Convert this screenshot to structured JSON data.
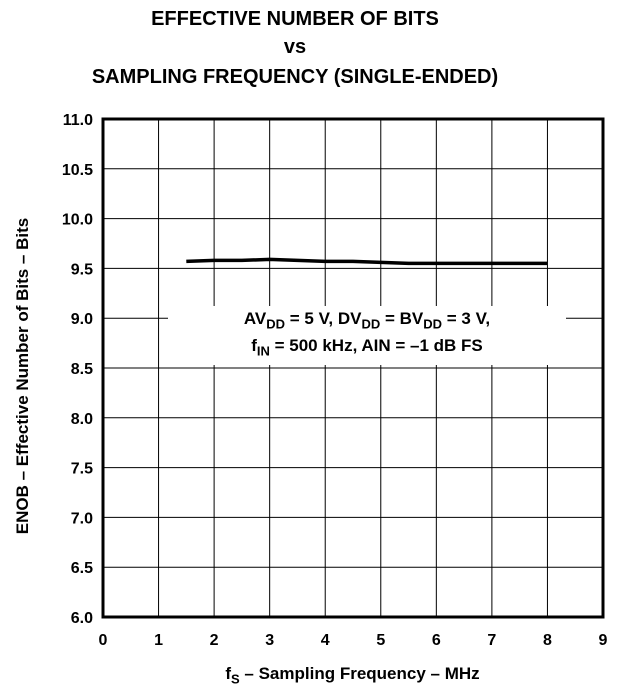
{
  "chart_data": {
    "type": "line",
    "title_lines": [
      "EFFECTIVE NUMBER OF BITS",
      "vs",
      "SAMPLING FREQUENCY (SINGLE-ENDED)"
    ],
    "xlabel": {
      "prefix": "f",
      "sub": "S",
      "rest": " – Sampling Frequency – MHz"
    },
    "ylabel": "ENOB – Effective Number of Bits – Bits",
    "xlim": [
      0,
      9
    ],
    "ylim": [
      6.0,
      11.0
    ],
    "x_ticks": [
      "0",
      "1",
      "2",
      "3",
      "4",
      "5",
      "6",
      "7",
      "8",
      "9"
    ],
    "y_ticks": [
      "6.0",
      "6.5",
      "7.0",
      "7.5",
      "8.0",
      "8.5",
      "9.0",
      "9.5",
      "10.0",
      "10.5",
      "11.0"
    ],
    "grid": true,
    "series": [
      {
        "x": [
          1.5,
          2,
          2.5,
          3,
          3.5,
          4,
          4.5,
          5,
          5.5,
          6,
          6.5,
          7,
          7.5,
          8
        ],
        "y": [
          9.57,
          9.58,
          9.58,
          9.59,
          9.58,
          9.57,
          9.57,
          9.56,
          9.55,
          9.55,
          9.55,
          9.55,
          9.55,
          9.55
        ]
      }
    ],
    "annotation": {
      "line1": [
        {
          "t": "AV",
          "sub": false
        },
        {
          "t": "DD",
          "sub": true
        },
        {
          "t": " = 5 V, DV",
          "sub": false
        },
        {
          "t": "DD",
          "sub": true
        },
        {
          "t": " = BV",
          "sub": false
        },
        {
          "t": "DD",
          "sub": true
        },
        {
          "t": " = 3 V,",
          "sub": false
        }
      ],
      "line2": [
        {
          "t": "f",
          "sub": false
        },
        {
          "t": "IN",
          "sub": true
        },
        {
          "t": " = 500 kHz, AIN = –1 dB FS",
          "sub": false
        }
      ]
    },
    "colors": {
      "line": "#000000",
      "grid": "#000000",
      "background": "#ffffff"
    }
  }
}
